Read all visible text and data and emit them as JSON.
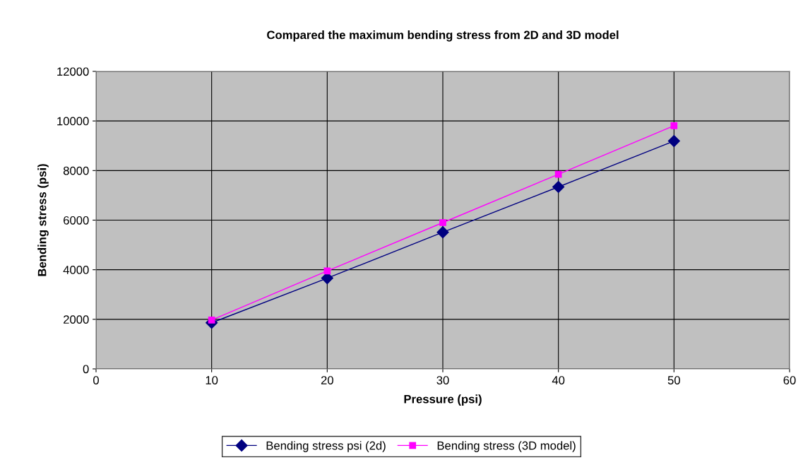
{
  "chart_data": {
    "type": "line",
    "title": "Compared the maximum bending stress from 2D and 3D model",
    "xlabel": "Pressure (psi)",
    "ylabel": "Bending stress (psi)",
    "x": [
      10,
      20,
      30,
      40,
      50
    ],
    "series": [
      {
        "name": "Bending stress psi (2d)",
        "color": "#000080",
        "marker": "diamond",
        "values": [
          1860,
          3660,
          5510,
          7340,
          9190
        ]
      },
      {
        "name": "Bending stress (3D model)",
        "color": "#ff00ff",
        "marker": "square",
        "values": [
          1970,
          3950,
          5900,
          7850,
          9810
        ]
      }
    ],
    "xlim": [
      0,
      60
    ],
    "xticks": [
      0,
      10,
      20,
      30,
      40,
      50,
      60
    ],
    "ylim": [
      0,
      12000
    ],
    "yticks": [
      0,
      2000,
      4000,
      6000,
      8000,
      10000,
      12000
    ],
    "grid": true,
    "legend": "bottom",
    "line_style": "solid"
  }
}
